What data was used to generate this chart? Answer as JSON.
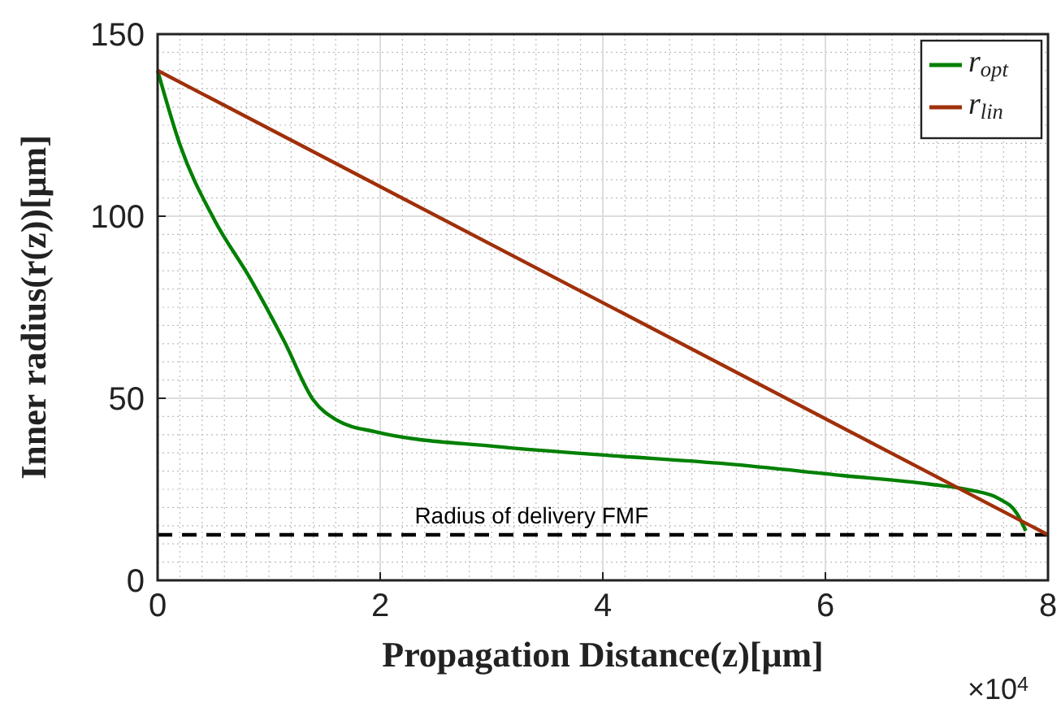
{
  "chart_data": {
    "type": "line",
    "xlabel": "Propagation Distance(z)[μm]",
    "ylabel": "Inner radius(r(z))[μm]",
    "xlim": [
      0,
      8
    ],
    "xticks": [
      0,
      2,
      4,
      6,
      8
    ],
    "ylim": [
      0,
      150
    ],
    "yticks": [
      0,
      50,
      100,
      150
    ],
    "grid": true,
    "legend": "top right",
    "annotations": [
      "×10$^{4}$"
    ],
    "ref_lines": [
      {
        "axis": "y",
        "value": 12.5,
        "label": "Radius of delivery FMF",
        "color": "#000000",
        "line_style": "dashed"
      }
    ],
    "series": [
      {
        "name": "r$_{opt}$",
        "color": "#008000",
        "x": [
          0,
          0.2,
          0.51,
          0.83,
          1.14,
          1.4,
          1.61,
          1.97,
          3.02,
          4.01,
          5.11,
          6.15,
          6.94,
          7.3,
          7.56,
          7.72,
          7.8
        ],
        "values": [
          140,
          119.7,
          99,
          83,
          65.5,
          49.5,
          44,
          40.7,
          36.8,
          34.4,
          32,
          28.8,
          26.4,
          24.8,
          22.4,
          18.4,
          13.6
        ]
      },
      {
        "name": "r$_{lin}$",
        "color": "#a0300a",
        "x": [
          0,
          8
        ],
        "values": [
          140,
          12.5
        ]
      }
    ]
  }
}
